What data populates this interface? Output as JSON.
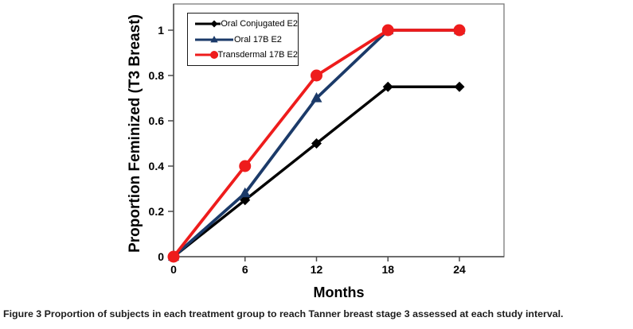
{
  "figure": {
    "caption_label": "Figure 3",
    "caption_text": "Proportion of subjects in each treatment group to reach Tanner breast stage 3 assessed at each study interval."
  },
  "chart_data": {
    "type": "line",
    "title": "",
    "xlabel": "Months",
    "ylabel": "Proportion Feminized (T3 Breast)",
    "x": [
      0,
      6,
      12,
      18,
      24
    ],
    "x_tick_labels": [
      "0",
      "6",
      "12",
      "18",
      "24"
    ],
    "y_ticks": [
      0,
      0.2,
      0.4,
      0.6,
      0.8,
      1
    ],
    "y_tick_labels": [
      "0",
      "0.2",
      "0.4",
      "0.6",
      "0.8",
      "1"
    ],
    "xlim": [
      0,
      27.5
    ],
    "ylim": [
      0,
      1.12
    ],
    "grid": false,
    "legend_position": "top-left",
    "axis_color": "#4a4a4a",
    "plot_border_color": "#7a7a7a",
    "series": [
      {
        "name": "Oral Conjugated E2",
        "color": "#000000",
        "marker": "diamond",
        "values": [
          0,
          0.25,
          0.5,
          0.75,
          0.75
        ]
      },
      {
        "name": "Oral 17B E2",
        "color": "#1B3A69",
        "marker": "triangle",
        "values": [
          0,
          0.28,
          0.7,
          1,
          1
        ]
      },
      {
        "name": "Transdermal 17B E2",
        "color": "#EE1C1C",
        "marker": "circle",
        "values": [
          0,
          0.4,
          0.8,
          1,
          1
        ]
      }
    ]
  }
}
